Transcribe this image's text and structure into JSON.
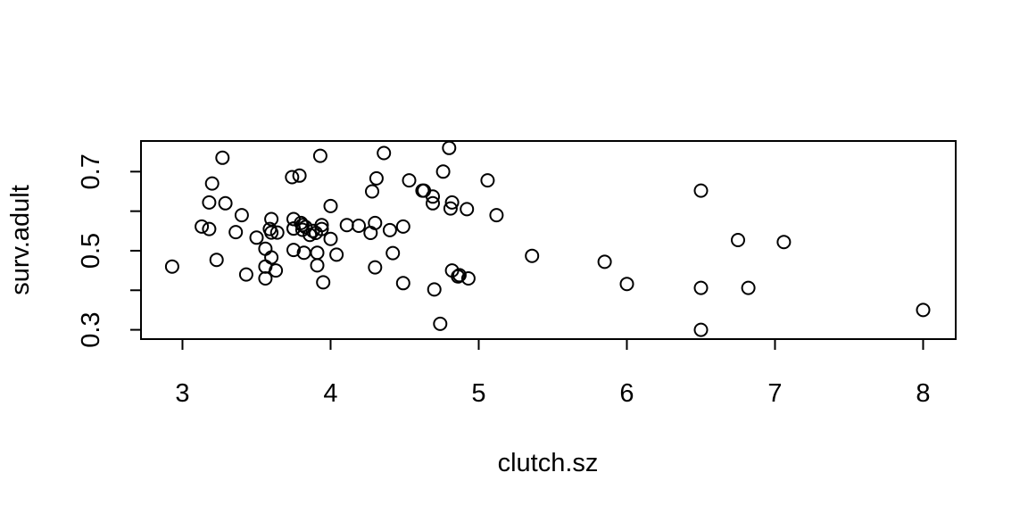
{
  "chart_data": {
    "type": "scatter",
    "title": "",
    "xlabel": "clutch.sz",
    "ylabel": "surv.adult",
    "xlim": [
      2.72,
      8.22
    ],
    "ylim": [
      0.2765,
      0.7775
    ],
    "xticks": [
      3,
      4,
      5,
      6,
      7,
      8
    ],
    "yticks": [
      0.3,
      0.5,
      0.7
    ],
    "yticks_unlabeled": [
      0.4,
      0.6
    ],
    "grid": false,
    "legend": "none",
    "marker": "open-circle",
    "x": [
      2.93,
      3.13,
      3.18,
      3.18,
      3.2,
      3.23,
      3.27,
      3.29,
      3.36,
      3.4,
      3.43,
      3.5,
      3.56,
      3.56,
      3.56,
      3.59,
      3.6,
      3.6,
      3.6,
      3.63,
      3.64,
      3.74,
      3.75,
      3.75,
      3.75,
      3.75,
      3.79,
      3.8,
      3.81,
      3.81,
      3.82,
      3.83,
      3.86,
      3.88,
      3.9,
      3.91,
      3.91,
      3.93,
      3.94,
      3.94,
      3.95,
      4.0,
      4.0,
      4.04,
      4.11,
      4.19,
      4.27,
      4.28,
      4.3,
      4.3,
      4.31,
      4.36,
      4.4,
      4.42,
      4.49,
      4.49,
      4.53,
      4.62,
      4.63,
      4.69,
      4.69,
      4.7,
      4.74,
      4.76,
      4.8,
      4.81,
      4.82,
      4.82,
      4.86,
      4.87,
      4.92,
      4.93,
      5.06,
      5.12,
      5.36,
      5.85,
      6.0,
      6.5,
      6.5,
      6.5,
      6.75,
      6.82,
      7.06,
      8.0
    ],
    "y": [
      0.46,
      0.561,
      0.622,
      0.555,
      0.67,
      0.477,
      0.735,
      0.62,
      0.547,
      0.59,
      0.44,
      0.533,
      0.46,
      0.505,
      0.43,
      0.555,
      0.58,
      0.483,
      0.546,
      0.45,
      0.546,
      0.686,
      0.58,
      0.556,
      0.502,
      0.556,
      0.69,
      0.57,
      0.565,
      0.553,
      0.495,
      0.56,
      0.54,
      0.55,
      0.545,
      0.463,
      0.495,
      0.74,
      0.565,
      0.555,
      0.42,
      0.613,
      0.53,
      0.49,
      0.565,
      0.563,
      0.545,
      0.65,
      0.458,
      0.57,
      0.683,
      0.747,
      0.552,
      0.494,
      0.418,
      0.561,
      0.678,
      0.652,
      0.652,
      0.637,
      0.62,
      0.402,
      0.315,
      0.7,
      0.76,
      0.607,
      0.622,
      0.45,
      0.435,
      0.438,
      0.605,
      0.43,
      0.678,
      0.59,
      0.487,
      0.472,
      0.416,
      0.652,
      0.406,
      0.3,
      0.527,
      0.406,
      0.522,
      0.35
    ]
  }
}
